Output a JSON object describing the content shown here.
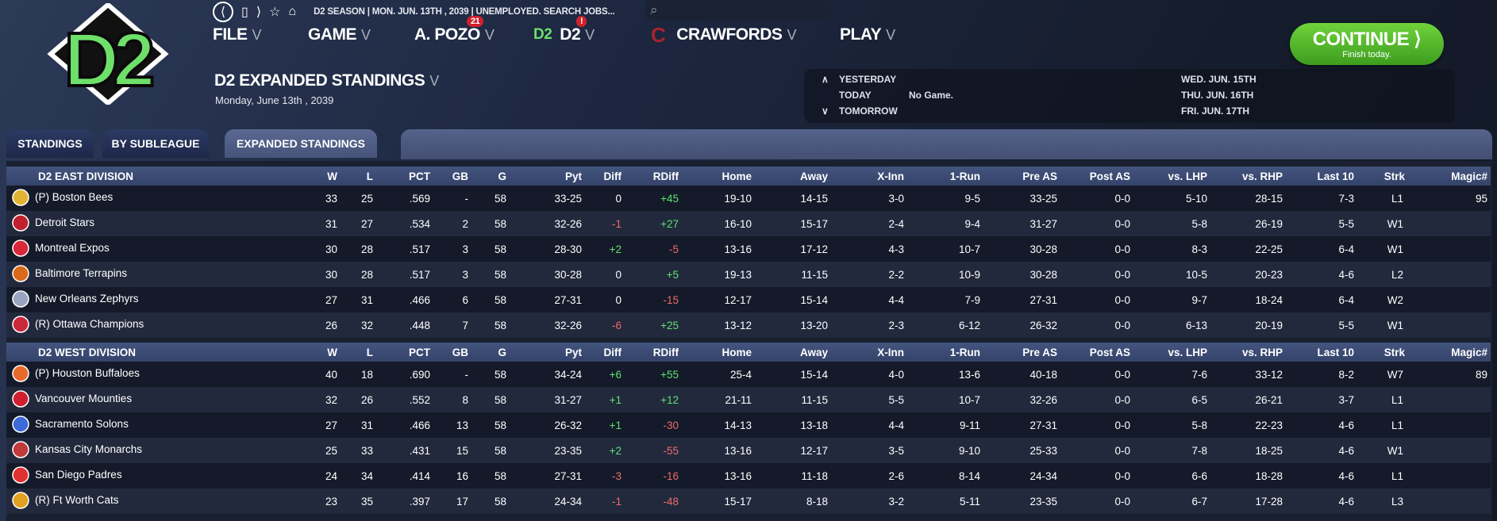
{
  "logo": {
    "text": "D2"
  },
  "topbar": {
    "crumbs": "D2 SEASON  |  MON. JUN. 13TH , 2039  |  UNEMPLOYED. SEARCH JOBS..."
  },
  "menu": {
    "file": "FILE",
    "game": "GAME",
    "manager": "A. POZO",
    "manager_badge": "21",
    "league": "D2",
    "league_badge": "!",
    "team": "CRAWFORDS",
    "play": "PLAY"
  },
  "page": {
    "title": "D2 EXPANDED STANDINGS",
    "date": "Monday, June 13th , 2039"
  },
  "schedule": {
    "yesterday": "YESTERDAY",
    "today": "TODAY",
    "tomorrow": "TOMORROW",
    "today_game": "No Game.",
    "d1": "WED. JUN. 15TH",
    "d2": "THU. JUN. 16TH",
    "d3": "FRI. JUN. 17TH"
  },
  "continue": {
    "label": "CONTINUE",
    "sub": "Finish today."
  },
  "tabs": [
    "STANDINGS",
    "BY SUBLEAGUE",
    "EXPANDED STANDINGS"
  ],
  "columns": [
    "W",
    "L",
    "PCT",
    "GB",
    "G",
    "Pyt",
    "Diff",
    "RDiff",
    "Home",
    "Away",
    "X-Inn",
    "1-Run",
    "Pre AS",
    "Post AS",
    "vs. LHP",
    "vs. RHP",
    "Last 10",
    "Strk",
    "Magic#"
  ],
  "colors": {
    "positive": "#5ee06e",
    "negative": "#f06a6a",
    "continue": "#4fb52a"
  },
  "divisions": [
    {
      "name": "D2 EAST DIVISION",
      "teams": [
        {
          "name": "(P) Boston Bees",
          "color": "#e2b233",
          "row": [
            "33",
            "25",
            ".569",
            "-",
            "58",
            "33-25",
            "0",
            "+45",
            "19-10",
            "14-15",
            "3-0",
            "9-5",
            "33-25",
            "0-0",
            "5-10",
            "28-15",
            "7-3",
            "L1",
            "95"
          ]
        },
        {
          "name": "Detroit Stars",
          "color": "#c0202e",
          "row": [
            "31",
            "27",
            ".534",
            "2",
            "58",
            "32-26",
            "-1",
            "+27",
            "16-10",
            "15-17",
            "2-4",
            "9-4",
            "31-27",
            "0-0",
            "5-8",
            "26-19",
            "5-5",
            "W1",
            ""
          ]
        },
        {
          "name": "Montreal Expos",
          "color": "#d8283a",
          "row": [
            "30",
            "28",
            ".517",
            "3",
            "58",
            "28-30",
            "+2",
            "-5",
            "13-16",
            "17-12",
            "4-3",
            "10-7",
            "30-28",
            "0-0",
            "8-3",
            "22-25",
            "6-4",
            "W1",
            ""
          ]
        },
        {
          "name": "Baltimore Terrapins",
          "color": "#d96a1a",
          "row": [
            "30",
            "28",
            ".517",
            "3",
            "58",
            "30-28",
            "0",
            "+5",
            "19-13",
            "11-15",
            "2-2",
            "10-9",
            "30-28",
            "0-0",
            "10-5",
            "20-23",
            "4-6",
            "L2",
            ""
          ]
        },
        {
          "name": "New Orleans Zephyrs",
          "color": "#9aa4c0",
          "row": [
            "27",
            "31",
            ".466",
            "6",
            "58",
            "27-31",
            "0",
            "-15",
            "12-17",
            "15-14",
            "4-4",
            "7-9",
            "27-31",
            "0-0",
            "9-7",
            "18-24",
            "6-4",
            "W2",
            ""
          ]
        },
        {
          "name": "(R) Ottawa Champions",
          "color": "#c8283a",
          "row": [
            "26",
            "32",
            ".448",
            "7",
            "58",
            "32-26",
            "-6",
            "+25",
            "13-12",
            "13-20",
            "2-3",
            "6-12",
            "26-32",
            "0-0",
            "6-13",
            "20-19",
            "5-5",
            "W1",
            ""
          ]
        }
      ]
    },
    {
      "name": "D2 WEST DIVISION",
      "teams": [
        {
          "name": "(P) Houston Buffaloes",
          "color": "#e86a2a",
          "row": [
            "40",
            "18",
            ".690",
            "-",
            "58",
            "34-24",
            "+6",
            "+55",
            "25-4",
            "15-14",
            "4-0",
            "13-6",
            "40-18",
            "0-0",
            "7-6",
            "33-12",
            "8-2",
            "W7",
            "89"
          ]
        },
        {
          "name": "Vancouver Mounties",
          "color": "#d02030",
          "row": [
            "32",
            "26",
            ".552",
            "8",
            "58",
            "31-27",
            "+1",
            "+12",
            "21-11",
            "11-15",
            "5-5",
            "10-7",
            "32-26",
            "0-0",
            "6-5",
            "26-21",
            "3-7",
            "L1",
            ""
          ]
        },
        {
          "name": "Sacramento Solons",
          "color": "#3c6ad8",
          "row": [
            "27",
            "31",
            ".466",
            "13",
            "58",
            "26-32",
            "+1",
            "-30",
            "14-13",
            "13-18",
            "4-4",
            "9-11",
            "27-31",
            "0-0",
            "5-8",
            "22-23",
            "4-6",
            "L1",
            ""
          ]
        },
        {
          "name": "Kansas City Monarchs",
          "color": "#c03a3a",
          "row": [
            "25",
            "33",
            ".431",
            "15",
            "58",
            "23-35",
            "+2",
            "-55",
            "13-16",
            "12-17",
            "3-5",
            "9-10",
            "25-33",
            "0-0",
            "7-8",
            "18-25",
            "4-6",
            "W1",
            ""
          ]
        },
        {
          "name": "San Diego Padres",
          "color": "#e03030",
          "row": [
            "24",
            "34",
            ".414",
            "16",
            "58",
            "27-31",
            "-3",
            "-16",
            "13-16",
            "11-18",
            "2-6",
            "8-14",
            "24-34",
            "0-0",
            "6-6",
            "18-28",
            "4-6",
            "L1",
            ""
          ]
        },
        {
          "name": "(R) Ft Worth Cats",
          "color": "#e0a020",
          "row": [
            "23",
            "35",
            ".397",
            "17",
            "58",
            "24-34",
            "-1",
            "-48",
            "15-17",
            "8-18",
            "3-2",
            "5-11",
            "23-35",
            "0-0",
            "6-7",
            "17-28",
            "4-6",
            "L3",
            ""
          ]
        }
      ]
    }
  ]
}
